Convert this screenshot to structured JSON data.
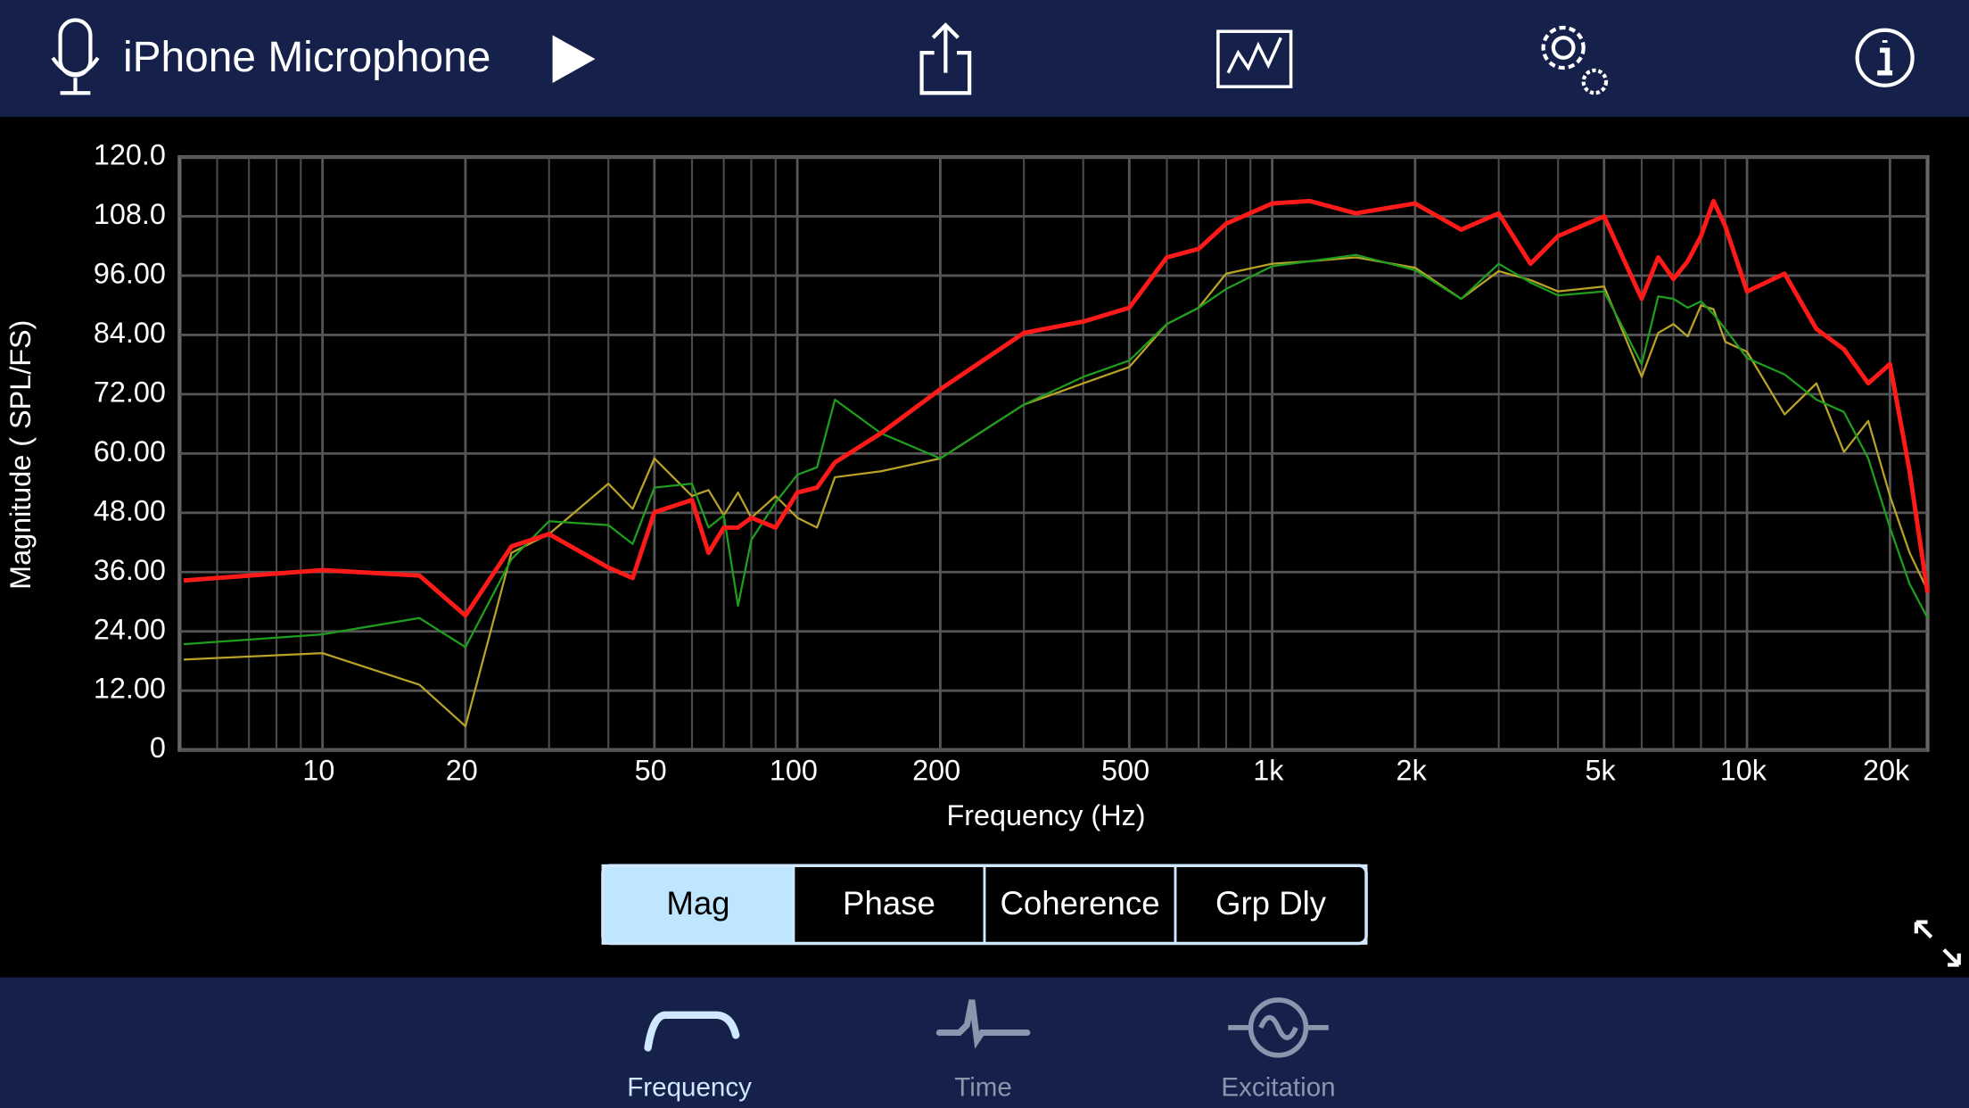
{
  "header": {
    "title": "iPhone Microphone"
  },
  "chart_data": {
    "type": "line",
    "x_label": "Frequency (Hz)",
    "y_label": "Magnitude ( SPL/FS)",
    "xlog": true,
    "grid": true,
    "xlim": [
      5,
      24000
    ],
    "ylim": [
      0,
      120
    ],
    "xticks": [
      10,
      20,
      50,
      100,
      200,
      500,
      {
        "value": 1000,
        "label": "1k"
      },
      {
        "value": 2000,
        "label": "2k"
      },
      {
        "value": 5000,
        "label": "5k"
      },
      {
        "value": 10000,
        "label": "10k"
      },
      {
        "value": 20000,
        "label": "20k"
      }
    ],
    "xminor": [
      6,
      7,
      8,
      9,
      30,
      40,
      60,
      70,
      80,
      90,
      300,
      400,
      600,
      700,
      800,
      900,
      3000,
      4000,
      6000,
      7000,
      8000,
      9000
    ],
    "yticks": [
      {
        "value": 120,
        "label": "120.0"
      },
      {
        "value": 108,
        "label": "108.0"
      },
      {
        "value": 96,
        "label": "96.00"
      },
      {
        "value": 84,
        "label": "84.00"
      },
      {
        "value": 72,
        "label": "72.00"
      },
      {
        "value": 60,
        "label": "60.00"
      },
      {
        "value": 48,
        "label": "48.00"
      },
      {
        "value": 36,
        "label": "36.00"
      },
      {
        "value": 24,
        "label": "24.00"
      },
      {
        "value": 12,
        "label": "12.00"
      },
      0
    ],
    "x": [
      5.1,
      10,
      16,
      20,
      25,
      30,
      40,
      45,
      50,
      60,
      65,
      70,
      75,
      80,
      90,
      100,
      110,
      120,
      150,
      200,
      300,
      400,
      500,
      600,
      700,
      800,
      1000,
      1200,
      1500,
      2000,
      2500,
      3000,
      3500,
      4000,
      5000,
      6000,
      6500,
      7000,
      7500,
      8000,
      8500,
      9000,
      10000,
      12000,
      14000,
      16000,
      18000,
      20000,
      22000,
      24000
    ],
    "series": [
      {
        "color": "#b8a228",
        "width": 1.6,
        "values": [
          18.3,
          19.6,
          13.2,
          4.8,
          39.9,
          43.7,
          53.9,
          48.8,
          59,
          51.4,
          52.6,
          47.5,
          52.1,
          47,
          51.4,
          47,
          45,
          55.2,
          56.4,
          59,
          69.9,
          74.2,
          77.5,
          86.2,
          89.5,
          96.4,
          98.4,
          98.9,
          99.7,
          97.6,
          91.3,
          96.9,
          95.1,
          92.8,
          93.8,
          75.5,
          84.4,
          86.2,
          83.7,
          90,
          89.2,
          82.6,
          80.6,
          67.9,
          74.2,
          60.3,
          66.6,
          51.4,
          39.9,
          32.3
        ]
      },
      {
        "color": "#1e9e1e",
        "width": 1.6,
        "values": [
          21.4,
          23.4,
          26.7,
          20.8,
          38.6,
          46.3,
          45.5,
          41.7,
          53.1,
          53.9,
          45,
          47.5,
          29.2,
          42.5,
          50.1,
          55.7,
          57.2,
          70.9,
          64.1,
          59,
          69.9,
          75.5,
          78.8,
          86.2,
          89.5,
          93.3,
          97.9,
          98.9,
          100.2,
          97.1,
          91.3,
          98.4,
          94.6,
          92,
          92.8,
          78.1,
          91.8,
          91.3,
          89.5,
          90.8,
          88.2,
          85.2,
          79.3,
          76,
          70.9,
          68.4,
          59,
          45,
          33.6,
          26.7
        ]
      },
      {
        "color": "#ff1a1a",
        "width": 3.5,
        "values": [
          34.3,
          36.4,
          35.3,
          27.2,
          41.2,
          43.7,
          36.9,
          34.8,
          48.1,
          50.6,
          39.9,
          45,
          45,
          47,
          45,
          52.1,
          53.1,
          58.2,
          64.1,
          73,
          84.4,
          86.7,
          89.5,
          99.7,
          101.4,
          106.5,
          110.6,
          111.1,
          108.6,
          110.6,
          105.3,
          108.6,
          98.4,
          104,
          108,
          91.3,
          99.7,
          95.3,
          98.9,
          104,
          111.1,
          106,
          92.8,
          96.4,
          85.2,
          81.1,
          74.2,
          78.1,
          56.4,
          31.8
        ]
      }
    ]
  },
  "segments": [
    "Mag",
    "Phase",
    "Coherence",
    "Grp Dly"
  ],
  "tabs": [
    "Frequency",
    "Time",
    "Excitation"
  ]
}
